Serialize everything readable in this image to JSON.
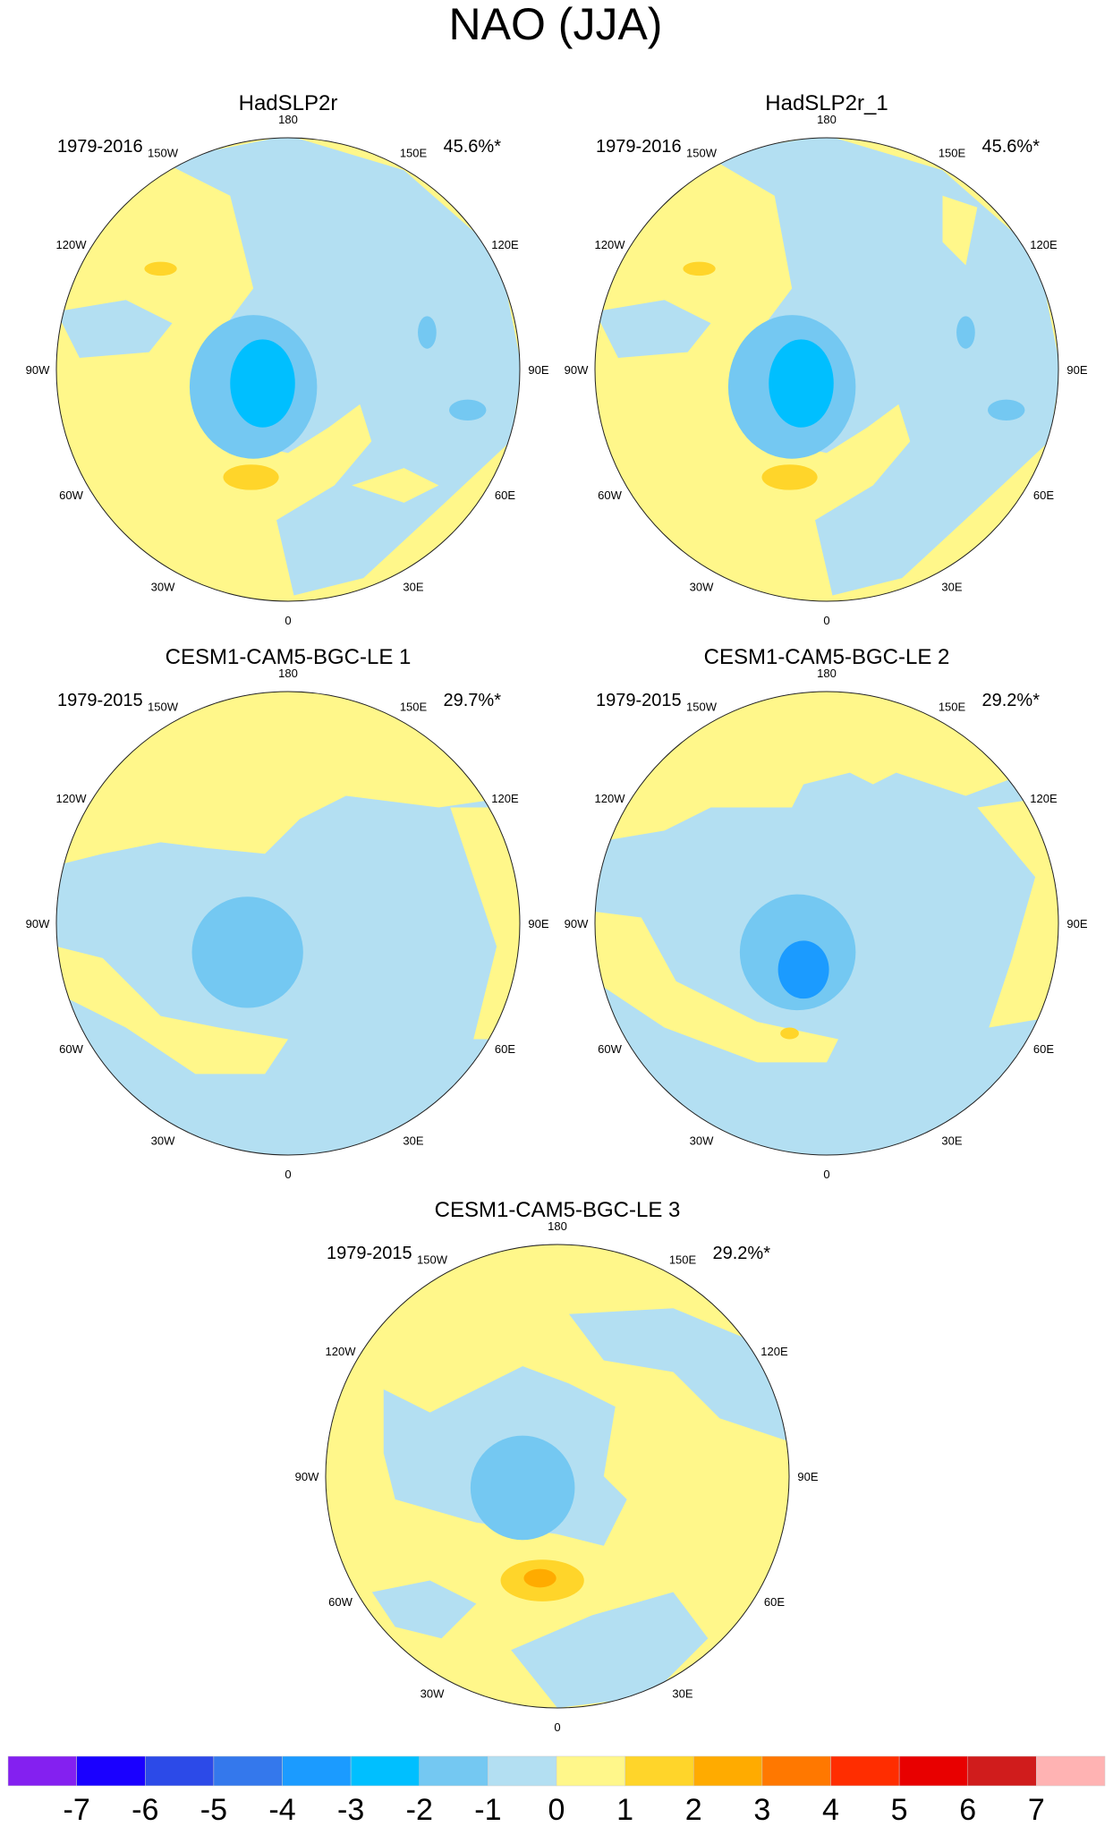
{
  "chart_data": {
    "type": "heatmap",
    "title": "NAO (JJA)",
    "projection": "north polar stereographic",
    "longitude_labels": [
      "180",
      "150E",
      "120E",
      "90E",
      "60E",
      "30E",
      "0",
      "30W",
      "60W",
      "90W",
      "120W",
      "150W"
    ],
    "panels": [
      {
        "title": "HadSLP2r",
        "period": "1979-2016",
        "variance": "45.6%*"
      },
      {
        "title": "HadSLP2r_1",
        "period": "1979-2016",
        "variance": "45.6%*"
      },
      {
        "title": "CESM1-CAM5-BGC-LE 1",
        "period": "1979-2015",
        "variance": "29.7%*"
      },
      {
        "title": "CESM1-CAM5-BGC-LE 2",
        "period": "1979-2015",
        "variance": "29.2%*"
      },
      {
        "title": "CESM1-CAM5-BGC-LE 3",
        "period": "1979-2015",
        "variance": "29.2%*"
      }
    ],
    "colorbar": {
      "labels": [
        "-7",
        "-6",
        "-5",
        "-4",
        "-3",
        "-2",
        "-1",
        "0",
        "1",
        "2",
        "3",
        "4",
        "5",
        "6",
        "7"
      ],
      "colors": [
        "#8420f0",
        "#1a00ff",
        "#2c4ae8",
        "#3478ec",
        "#1b9bff",
        "#00bfff",
        "#74c8f2",
        "#b3dff2",
        "#fff78a",
        "#ffd52a",
        "#ffab00",
        "#ff7800",
        "#ff2d00",
        "#e80000",
        "#d01c1c",
        "#ffb3b3"
      ]
    }
  }
}
